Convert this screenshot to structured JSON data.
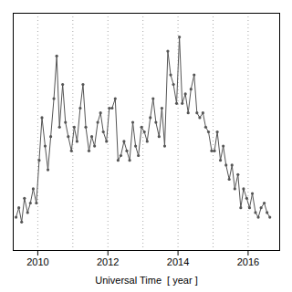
{
  "chart_data": {
    "type": "line",
    "xlabel": "Universal Time  [ year ]",
    "color": "#555555",
    "marker": "o",
    "tick_labels": "x",
    "xlim": [
      2009.3,
      2016.9
    ],
    "xticks": [
      2010,
      2012,
      2014,
      2016
    ],
    "ylim": [
      0,
      100
    ],
    "vlines": [
      2010.0,
      2011.0,
      2012.0,
      2013.0,
      2014.0,
      2015.0,
      2016.0
    ],
    "x": [
      2009.38,
      2009.46,
      2009.54,
      2009.62,
      2009.71,
      2009.79,
      2009.87,
      2009.96,
      2010.04,
      2010.12,
      2010.21,
      2010.29,
      2010.37,
      2010.46,
      2010.54,
      2010.62,
      2010.71,
      2010.79,
      2010.87,
      2010.96,
      2011.04,
      2011.12,
      2011.21,
      2011.29,
      2011.37,
      2011.46,
      2011.54,
      2011.62,
      2011.71,
      2011.79,
      2011.87,
      2011.96,
      2012.04,
      2012.12,
      2012.21,
      2012.29,
      2012.37,
      2012.46,
      2012.54,
      2012.62,
      2012.71,
      2012.79,
      2012.87,
      2012.96,
      2013.04,
      2013.12,
      2013.21,
      2013.29,
      2013.37,
      2013.46,
      2013.54,
      2013.62,
      2013.71,
      2013.79,
      2013.87,
      2013.96,
      2014.04,
      2014.12,
      2014.21,
      2014.29,
      2014.37,
      2014.46,
      2014.54,
      2014.62,
      2014.71,
      2014.79,
      2014.87,
      2014.96,
      2015.04,
      2015.12,
      2015.21,
      2015.29,
      2015.37,
      2015.46,
      2015.54,
      2015.62,
      2015.71,
      2015.79,
      2015.87,
      2015.96,
      2016.04,
      2016.12,
      2016.21,
      2016.29,
      2016.37,
      2016.46,
      2016.54,
      2016.62
    ],
    "values": [
      14,
      18,
      12,
      22,
      16,
      20,
      26,
      20,
      38,
      56,
      44,
      34,
      48,
      64,
      82,
      52,
      70,
      54,
      48,
      42,
      52,
      46,
      60,
      70,
      52,
      42,
      48,
      44,
      54,
      58,
      50,
      46,
      60,
      60,
      64,
      38,
      40,
      46,
      42,
      38,
      54,
      44,
      40,
      52,
      50,
      46,
      56,
      64,
      54,
      48,
      60,
      44,
      84,
      74,
      70,
      62,
      90,
      62,
      66,
      58,
      68,
      74,
      58,
      56,
      58,
      52,
      50,
      42,
      42,
      50,
      38,
      44,
      36,
      30,
      36,
      26,
      32,
      18,
      26,
      22,
      18,
      24,
      16,
      14,
      18,
      20,
      16,
      14
    ]
  }
}
